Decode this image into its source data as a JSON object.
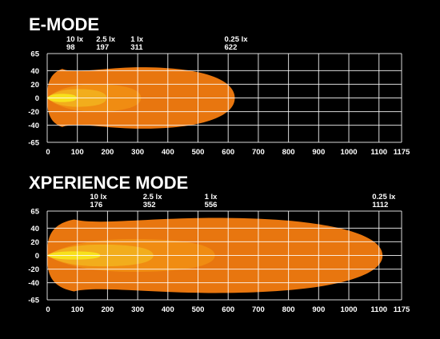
{
  "chart_data": [
    {
      "type": "area",
      "title": "E-MODE",
      "x_ticks": [
        0,
        100,
        200,
        300,
        400,
        500,
        600,
        700,
        800,
        900,
        1000,
        1100,
        1175
      ],
      "y_ticks": [
        65,
        40,
        20,
        0,
        -20,
        -40,
        -65
      ],
      "xlim": [
        0,
        1175
      ],
      "ylim": [
        -65,
        65
      ],
      "grid": true,
      "markers": [
        {
          "lux": "10 lx",
          "distance": 98
        },
        {
          "lux": "2.5 lx",
          "distance": 197
        },
        {
          "lux": "1 lx",
          "distance": 311
        },
        {
          "lux": "0.25 lx",
          "distance": 622
        }
      ],
      "zones": [
        {
          "lux": "0.25 lx",
          "reach": 622,
          "half_width": 45,
          "color": "#e8760f"
        },
        {
          "lux": "1 lx",
          "reach": 311,
          "half_width": 20,
          "color": "#f08c12"
        },
        {
          "lux": "2.5 lx",
          "reach": 197,
          "half_width": 13,
          "color": "#f2ad1c"
        },
        {
          "lux": "10 lx",
          "reach": 98,
          "half_width": 6,
          "color": "#f8e01c"
        }
      ]
    },
    {
      "type": "area",
      "title": "XPERIENCE MODE",
      "x_ticks": [
        0,
        100,
        200,
        300,
        400,
        500,
        600,
        700,
        800,
        900,
        1000,
        1100,
        1175
      ],
      "y_ticks": [
        65,
        40,
        20,
        0,
        -20,
        -40,
        -65
      ],
      "xlim": [
        0,
        1175
      ],
      "ylim": [
        -65,
        65
      ],
      "grid": true,
      "markers": [
        {
          "lux": "10 lx",
          "distance": 176
        },
        {
          "lux": "2.5 lx",
          "distance": 352
        },
        {
          "lux": "1 lx",
          "distance": 556
        },
        {
          "lux": "0.25 lx",
          "distance": 1112
        }
      ],
      "zones": [
        {
          "lux": "0.25 lx",
          "reach": 1112,
          "half_width": 55,
          "color": "#e8760f"
        },
        {
          "lux": "1 lx",
          "reach": 556,
          "half_width": 24,
          "color": "#f08c12"
        },
        {
          "lux": "2.5 lx",
          "reach": 352,
          "half_width": 16,
          "color": "#f2ad1c"
        },
        {
          "lux": "10 lx",
          "reach": 176,
          "half_width": 6,
          "color": "#f8e01c"
        }
      ]
    }
  ]
}
